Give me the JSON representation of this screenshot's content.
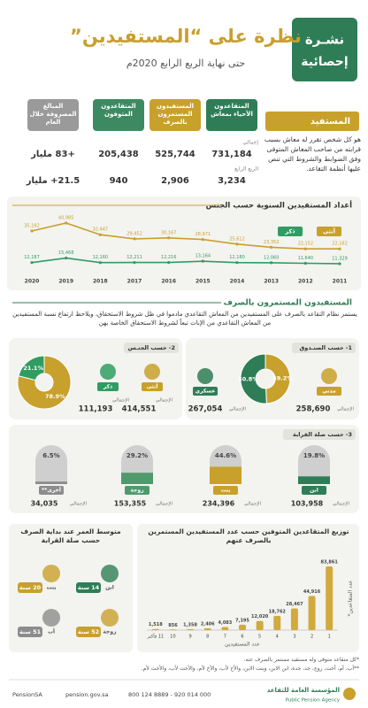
{
  "header": {
    "badge": [
      "نشـرة",
      "إحصائية"
    ],
    "title": "نظرة على “المستفيدين”",
    "subtitle": "حتى نهاية الربع الرابع 2020م"
  },
  "definition": {
    "title": "المستفيد",
    "text": "هو كل شخص تقرر له معاش بسبب قرابته من صاحب المعاش المتوفى وفق الضوابط والشروط التي تنص عليها أنظمة التقاعد."
  },
  "stats": {
    "row_labels": [
      "إجمالي",
      "الربع الرابع"
    ],
    "columns": [
      {
        "header": "المتقاعدون الأحياء بمعاش",
        "total": "731,184",
        "quarter": "3,234",
        "color": "#2f7d56"
      },
      {
        "header": "المستفيدون المستمرون بالصرف",
        "total": "525,744",
        "quarter": "2,906",
        "color": "#c8a02c"
      },
      {
        "header": "المتقاعدون المتوفون",
        "total": "205,438",
        "quarter": "940",
        "color": "#3d8a62"
      },
      {
        "header": "المبالغ المصروفة خلال العام",
        "total": "+83 مليار",
        "quarter": "21.5+ مليار",
        "color": "#9a9a9a"
      }
    ]
  },
  "chart_data": [
    {
      "type": "line",
      "title": "أعداد المستفيدين السنوية حسب الجنس",
      "categories": [
        "2020",
        "2019",
        "2018",
        "2017",
        "2016",
        "2015",
        "2014",
        "2013",
        "2012",
        "2011"
      ],
      "series": [
        {
          "name": "أنثى",
          "color": "#c8a02c",
          "values": [
            35192,
            40985,
            32447,
            29452,
            30167,
            28971,
            25612,
            23352,
            22152,
            22162
          ],
          "value_labels": [
            "35,192",
            "40,985",
            "32,447",
            "29,452",
            "30,167",
            "28,971",
            "25,612",
            "23,352",
            "22,152",
            "22,162"
          ]
        },
        {
          "name": "ذكر",
          "color": "#2f9d62",
          "values": [
            12187,
            15468,
            12160,
            12211,
            12216,
            13164,
            12180,
            12060,
            11640,
            11329
          ],
          "value_labels": [
            "12,187",
            "15,468",
            "12,160",
            "12,211",
            "12,216",
            "13,164",
            "12,180",
            "12,060",
            "11,640",
            "11,329"
          ]
        }
      ]
    },
    {
      "type": "bar",
      "title": "توزيع المتقاعدين المتوفين حسب عدد المستفيدين المستمرين بالصرف عنهم",
      "x_label": "عدد المستفيدين",
      "y_label": "عدد المتقاعدين*",
      "color": "#d1aa3e",
      "categories": [
        "11 فأكثر",
        "10",
        "9",
        "8",
        "7",
        "6",
        "5",
        "4",
        "3",
        "2",
        "1"
      ],
      "values": [
        1518,
        856,
        1358,
        2406,
        4083,
        7195,
        12020,
        18762,
        28467,
        44916,
        83861
      ],
      "value_labels": [
        "1,518",
        "856",
        "1,358",
        "2,406",
        "4,083",
        "7,195",
        "12,020",
        "18,762",
        "28,467",
        "44,916",
        "83,861"
      ]
    }
  ],
  "breakdown": {
    "title": "المستفيدون المستمرون بالصرف",
    "text": "يستمر نظام التقاعد بالصرف على المستفيدين من المعاش التقاعدي مادموا في ظل شروط الاستحقاق، ويلاحظ ارتفاع نسبة المستفيدين من المعاش التقاعدي من الإناث تبعاً لشروط الاستحقاق الخاصة بهن",
    "total_label": "الإجمالي",
    "by_fund": {
      "title": "1- حسب الصنـدوق",
      "items": [
        {
          "name": "مدني",
          "total": "258,690",
          "share": 49.2,
          "share_label": "49.2%",
          "color": "#c8a02c"
        },
        {
          "name": "عسكري",
          "total": "267,054",
          "share": 50.8,
          "share_label": "50.8%",
          "color": "#2f7d56"
        }
      ]
    },
    "by_gender": {
      "title": "2- حسب الجنـس",
      "items": [
        {
          "name": "أنثى",
          "total": "414,551",
          "share": 78.9,
          "share_label": "78.9%",
          "color": "#c8a02c"
        },
        {
          "name": "ذكر",
          "total": "111,193",
          "share": 21.1,
          "share_label": "21.1%",
          "color": "#2f9d62"
        }
      ]
    },
    "by_relation": {
      "title": "3- حسب صلة القرابة",
      "items": [
        {
          "name": "ابن",
          "total": "103,958",
          "share": 19.8,
          "share_label": "19.8%",
          "color": "#2f7d56"
        },
        {
          "name": "بنت",
          "total": "234,396",
          "share": 44.6,
          "share_label": "44.6%",
          "color": "#c8a02c"
        },
        {
          "name": "زوجة",
          "total": "153,355",
          "share": 29.2,
          "share_label": "29.2%",
          "color": "#4f9a6c"
        },
        {
          "name": "أخرى**",
          "total": "34,035",
          "share": 6.5,
          "share_label": "6.5%",
          "color": "#8c8c8c"
        }
      ]
    }
  },
  "ages": {
    "title": "متوسط العمر عند بداية الصرف حسب صلة القرابة",
    "items": [
      {
        "relation": "ابن",
        "age": "14 سنة",
        "color": "#2f7d56"
      },
      {
        "relation": "بنت",
        "age": "20 سنة",
        "color": "#c8a02c"
      },
      {
        "relation": "زوجة",
        "age": "52 سنة",
        "color": "#c8a02c"
      },
      {
        "relation": "أب",
        "age": "51 سنة",
        "color": "#8c8c8c"
      }
    ]
  },
  "notes": [
    "*كل متقاعد متوفى وله مستفيد مستمر بالصرف عنه.",
    "**أب، أم، أخت، زوج، جد، جدة، ابن الابن، وبنت الابن، والأخ لأب، والأخ لأم، والأخت لأب، والأخت لأم."
  ],
  "footer": {
    "org_ar": "المؤسسة العامة للتقاعد",
    "org_en": "Public Pension Agency",
    "phones": "800 124 8889 - 920 014 000",
    "website": "pension.gov.sa",
    "social": "PensionSA"
  }
}
